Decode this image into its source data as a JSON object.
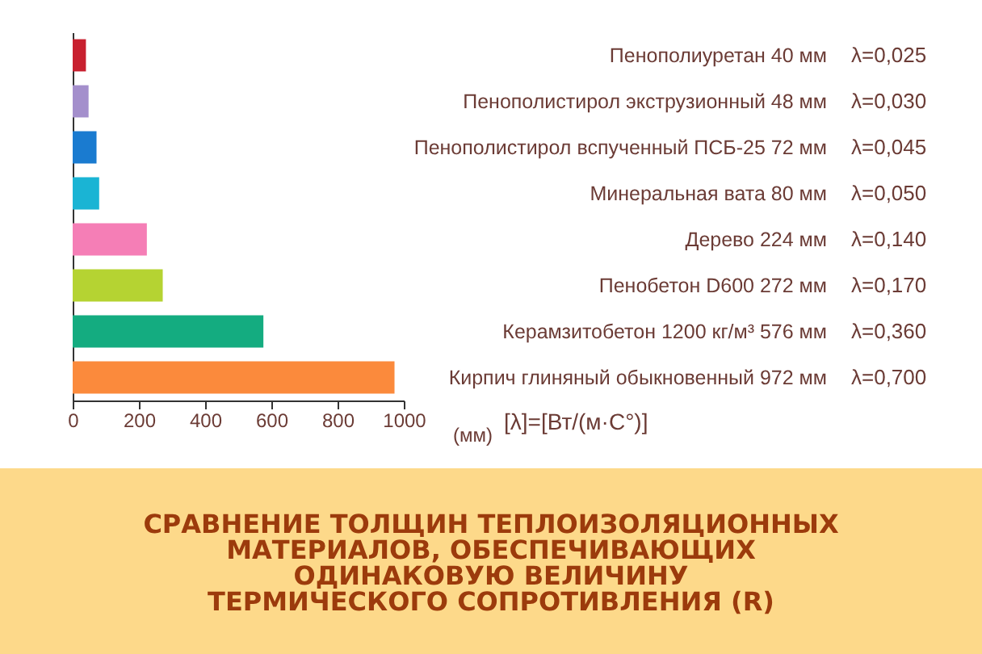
{
  "chart_data": {
    "type": "bar",
    "orientation": "horizontal",
    "title": "СРАВНЕНИЕ ТОЛЩИН ТЕПЛОИЗОЛЯЦИОННЫХ\nМАТЕРИАЛОВ, ОБЕСПЕЧИВАЮЩИХ\nОДИНАКОВУЮ ВЕЛИЧИНУ\nТЕРМИЧЕСКОГО СОПРОТИВЛЕНИЯ (R)",
    "xlabel": "(мм)",
    "categories": [
      "Пенополиуретан  40 мм",
      "Пенополистирол экструзионный  48 мм",
      "Пенополистирол вспученный ПСБ-25  72 мм",
      "Минеральная вата  80 мм",
      "Дерево  224 мм",
      "Пенобетон D600  272 мм",
      "Керамзитобетон 1200 кг/м³ 576 мм",
      "Кирпич глиняный обыкновенный  972 мм"
    ],
    "values": [
      40,
      48,
      72,
      80,
      224,
      272,
      576,
      972
    ],
    "colors": [
      "#c8202f",
      "#a48fcc",
      "#1a7bd0",
      "#1ab4d4",
      "#f57eb6",
      "#b5d332",
      "#14ac80",
      "#fb8a3c"
    ],
    "annotations": [
      "λ=0,025",
      "λ=0,030",
      "λ=0,045",
      "λ=0,050",
      "λ=0,140",
      "λ=0,170",
      "λ=0,360",
      "λ=0,700",
      "[λ]=[Вт/(м·С°)]"
    ],
    "xlim": [
      0,
      1000
    ],
    "xticks": [
      0,
      200,
      400,
      600,
      800,
      1000
    ],
    "grid": false
  }
}
